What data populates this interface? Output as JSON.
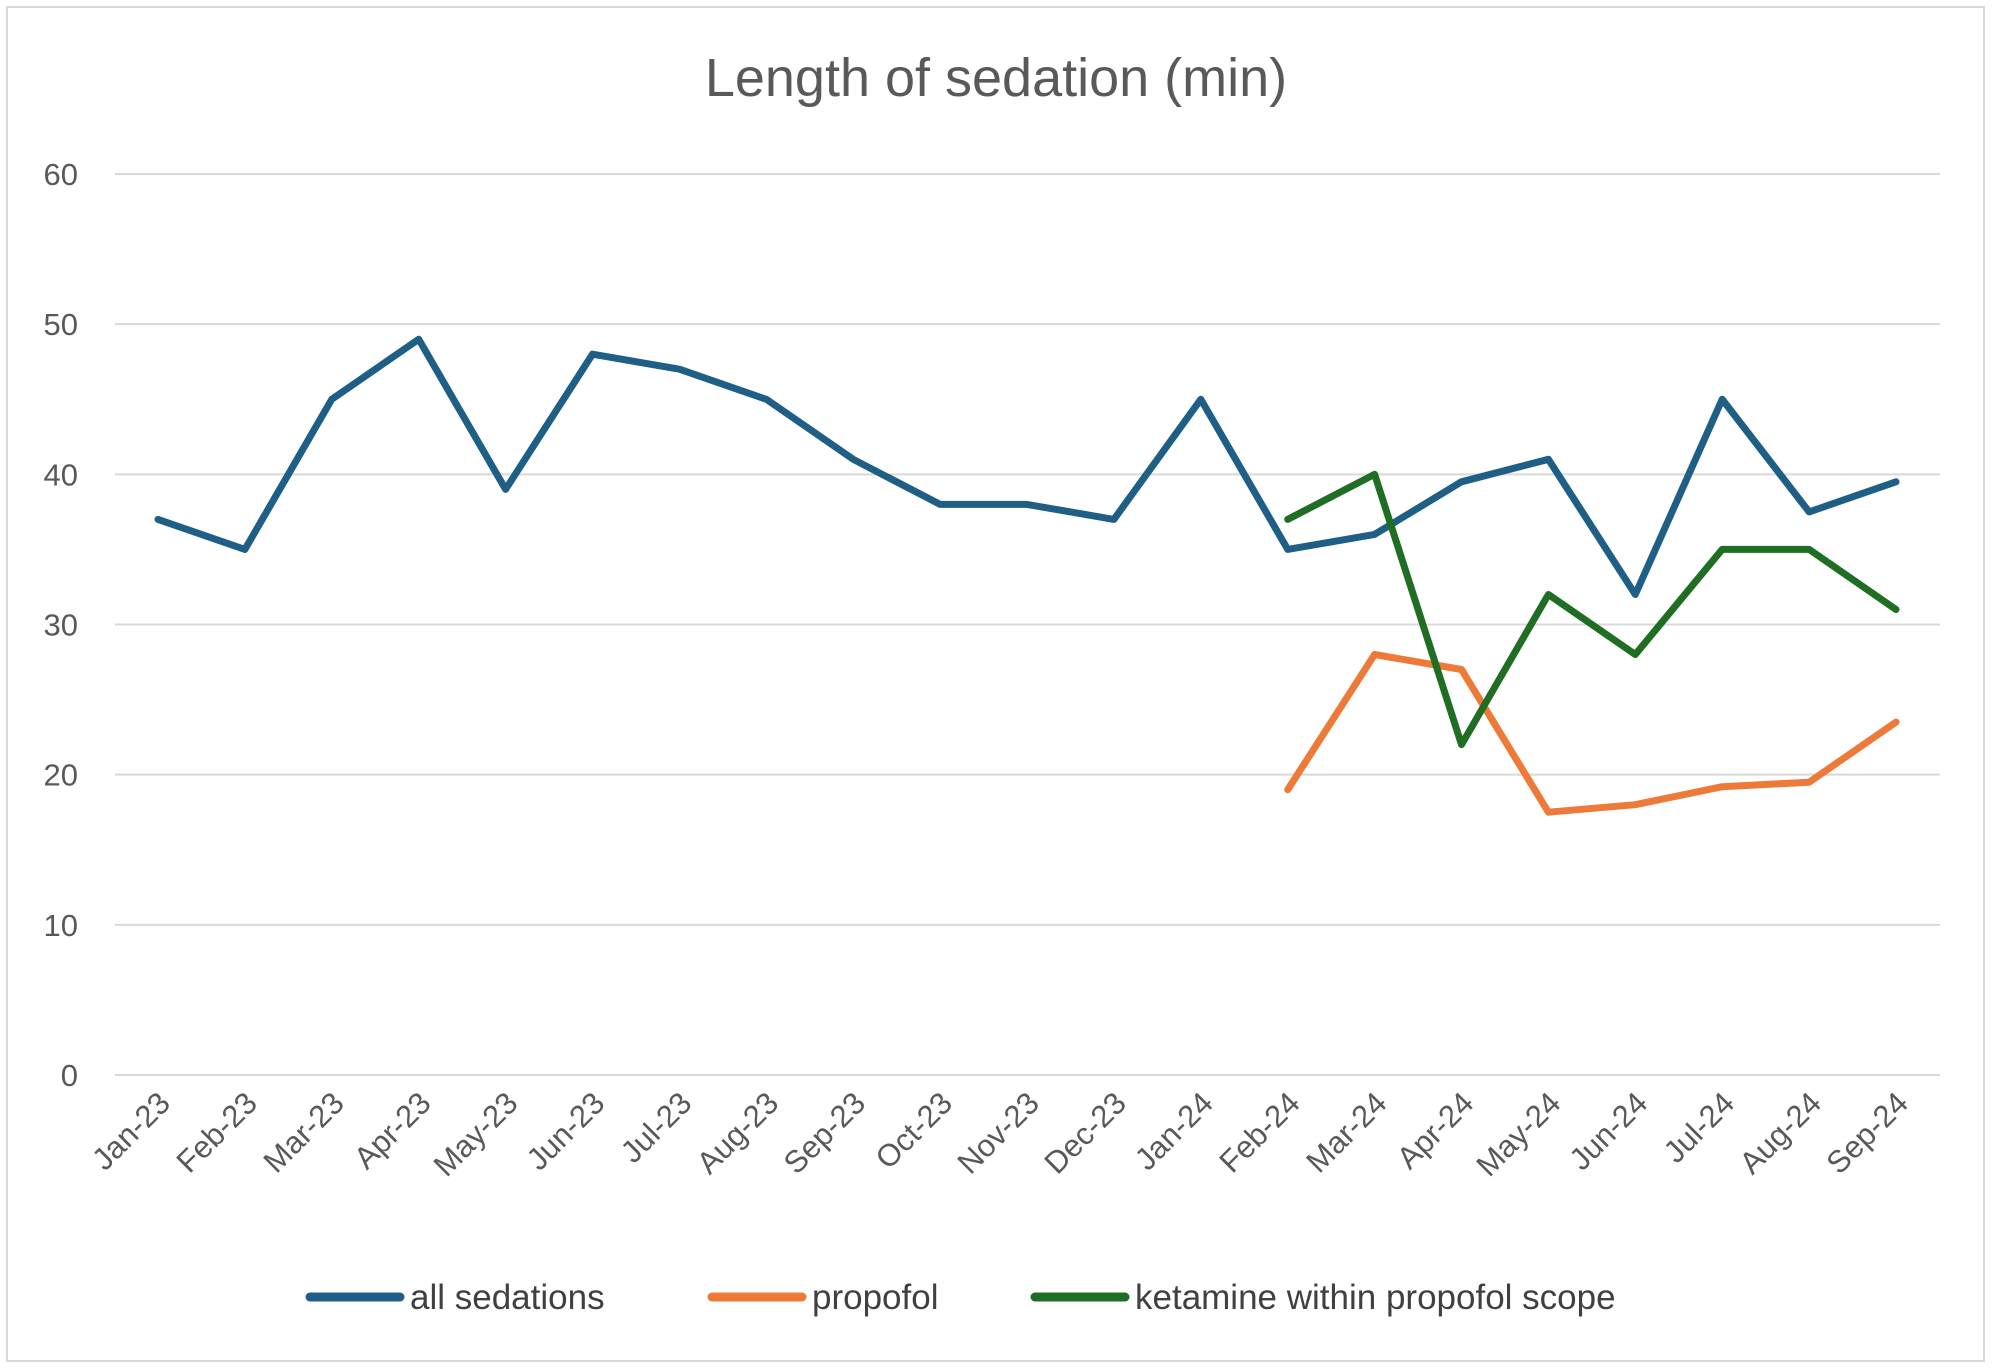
{
  "chart_data": {
    "type": "line",
    "title": "Length of sedation (min)",
    "xlabel": "",
    "ylabel": "",
    "ylim": [
      0,
      60
    ],
    "yticks": [
      0,
      10,
      20,
      30,
      40,
      50,
      60
    ],
    "grid": true,
    "legend_position": "bottom",
    "categories": [
      "Jan-23",
      "Feb-23",
      "Mar-23",
      "Apr-23",
      "May-23",
      "Jun-23",
      "Jul-23",
      "Aug-23",
      "Sep-23",
      "Oct-23",
      "Nov-23",
      "Dec-23",
      "Jan-24",
      "Feb-24",
      "Mar-24",
      "Apr-24",
      "May-24",
      "Jun-24",
      "Jul-24",
      "Aug-24",
      "Sep-24"
    ],
    "series": [
      {
        "name": "all sedations",
        "color": "#1f5f86",
        "values": [
          37,
          35,
          45,
          49,
          39,
          48,
          47,
          45,
          41,
          38,
          38,
          37,
          45,
          35,
          36,
          39.5,
          41,
          32,
          45,
          37.5,
          39.5
        ]
      },
      {
        "name": "propofol",
        "color": "#ee7a3a",
        "values": [
          null,
          null,
          null,
          null,
          null,
          null,
          null,
          null,
          null,
          null,
          null,
          null,
          null,
          19,
          28,
          27,
          17.5,
          18,
          19.2,
          19.5,
          23.5
        ]
      },
      {
        "name": "ketamine within propofol scope",
        "color": "#1f6e23",
        "values": [
          null,
          null,
          null,
          null,
          null,
          null,
          null,
          null,
          null,
          null,
          null,
          null,
          null,
          37,
          40,
          22,
          32,
          28,
          35,
          35,
          31
        ]
      }
    ]
  }
}
